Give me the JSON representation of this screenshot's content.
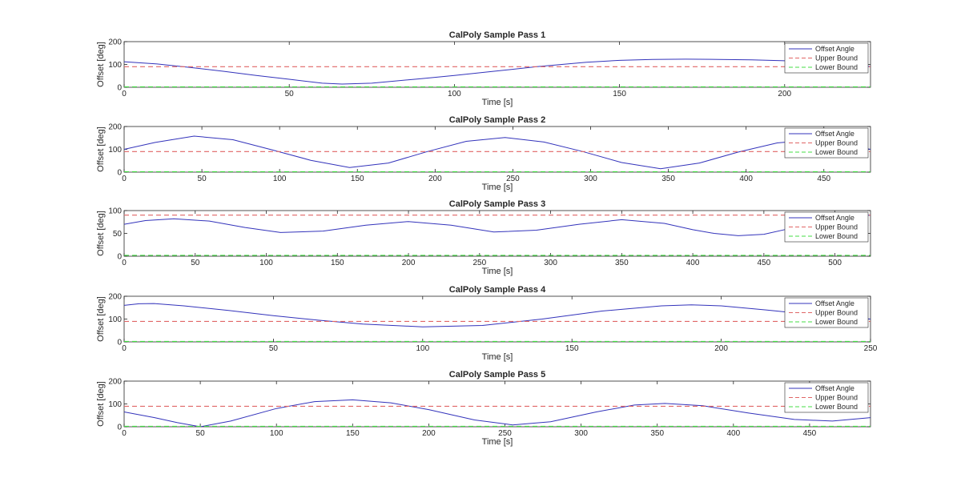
{
  "colors": {
    "offset": "#3333bb",
    "upper": "#e06666",
    "lower": "#44dd44",
    "axis": "#262626",
    "background": "#ffffff"
  },
  "chart_data": [
    {
      "type": "line",
      "title": "CalPoly Sample Pass 1",
      "xlabel": "Time [s]",
      "ylabel": "Offset [deg]",
      "xlim": [
        0,
        226
      ],
      "ylim": [
        0,
        200
      ],
      "xticks": [
        0,
        50,
        100,
        150,
        200
      ],
      "yticks": [
        0,
        100,
        200
      ],
      "legend": {
        "position": "top-right",
        "entries": [
          "Offset Angle",
          "Upper Bound",
          "Lower Bound"
        ]
      },
      "series": [
        {
          "name": "Offset Angle",
          "style": "solid",
          "x": [
            0,
            10,
            20,
            30,
            40,
            50,
            60,
            66,
            75,
            90,
            100,
            110,
            125,
            140,
            150,
            160,
            170,
            180,
            190,
            200,
            210,
            220,
            226
          ],
          "y": [
            112,
            102,
            87,
            70,
            52,
            35,
            18,
            14,
            18,
            38,
            52,
            67,
            90,
            110,
            118,
            122,
            123,
            122,
            120,
            116,
            110,
            100,
            90
          ]
        },
        {
          "name": "Upper Bound",
          "style": "dashed",
          "x": [
            0,
            226
          ],
          "y": [
            90,
            90
          ]
        },
        {
          "name": "Lower Bound",
          "style": "dashed",
          "x": [
            0,
            226
          ],
          "y": [
            2,
            2
          ]
        }
      ]
    },
    {
      "type": "line",
      "title": "CalPoly Sample Pass 2",
      "xlabel": "Time [s]",
      "ylabel": "Offset [deg]",
      "xlim": [
        0,
        480
      ],
      "ylim": [
        0,
        200
      ],
      "xticks": [
        0,
        50,
        100,
        150,
        200,
        250,
        300,
        350,
        400,
        450
      ],
      "yticks": [
        0,
        100,
        200
      ],
      "legend": {
        "position": "top-right",
        "entries": [
          "Offset Angle",
          "Upper Bound",
          "Lower Bound"
        ]
      },
      "series": [
        {
          "name": "Offset Angle",
          "style": "solid",
          "x": [
            0,
            20,
            45,
            70,
            95,
            120,
            145,
            170,
            195,
            220,
            245,
            270,
            295,
            320,
            345,
            370,
            395,
            420,
            440,
            460,
            480
          ],
          "y": [
            100,
            130,
            158,
            142,
            98,
            52,
            20,
            40,
            90,
            135,
            152,
            132,
            90,
            42,
            15,
            40,
            88,
            128,
            140,
            125,
            100
          ]
        },
        {
          "name": "Upper Bound",
          "style": "dashed",
          "x": [
            0,
            480
          ],
          "y": [
            90,
            90
          ]
        },
        {
          "name": "Lower Bound",
          "style": "dashed",
          "x": [
            0,
            480
          ],
          "y": [
            2,
            2
          ]
        }
      ]
    },
    {
      "type": "line",
      "title": "CalPoly Sample Pass 3",
      "xlabel": "Time [s]",
      "ylabel": "Offset [deg]",
      "xlim": [
        0,
        525
      ],
      "ylim": [
        0,
        100
      ],
      "xticks": [
        0,
        50,
        100,
        150,
        200,
        250,
        300,
        350,
        400,
        450,
        500
      ],
      "yticks": [
        0,
        50,
        100
      ],
      "legend": {
        "position": "top-right",
        "entries": [
          "Offset Angle",
          "Upper Bound",
          "Lower Bound"
        ]
      },
      "series": [
        {
          "name": "Offset Angle",
          "style": "solid",
          "x": [
            0,
            15,
            35,
            60,
            85,
            110,
            140,
            170,
            200,
            230,
            260,
            290,
            320,
            350,
            380,
            400,
            415,
            432,
            450,
            470,
            490,
            510,
            525
          ],
          "y": [
            70,
            78,
            82,
            77,
            63,
            52,
            55,
            68,
            76,
            68,
            53,
            57,
            70,
            80,
            72,
            58,
            50,
            45,
            48,
            62,
            78,
            88,
            90
          ]
        },
        {
          "name": "Upper Bound",
          "style": "dashed",
          "x": [
            0,
            525
          ],
          "y": [
            90,
            90
          ]
        },
        {
          "name": "Lower Bound",
          "style": "dashed",
          "x": [
            0,
            525
          ],
          "y": [
            2,
            2
          ]
        }
      ]
    },
    {
      "type": "line",
      "title": "CalPoly Sample Pass 4",
      "xlabel": "Time [s]",
      "ylabel": "Offset [deg]",
      "xlim": [
        0,
        250
      ],
      "ylim": [
        0,
        200
      ],
      "xticks": [
        0,
        50,
        100,
        150,
        200,
        250
      ],
      "yticks": [
        0,
        100,
        200
      ],
      "legend": {
        "position": "top-right",
        "entries": [
          "Offset Angle",
          "Upper Bound",
          "Lower Bound"
        ]
      },
      "series": [
        {
          "name": "Offset Angle",
          "style": "solid",
          "x": [
            0,
            5,
            10,
            20,
            35,
            50,
            65,
            80,
            100,
            120,
            140,
            160,
            180,
            190,
            200,
            215,
            230,
            250
          ],
          "y": [
            160,
            167,
            168,
            158,
            138,
            115,
            95,
            78,
            66,
            72,
            100,
            135,
            158,
            162,
            158,
            140,
            120,
            100
          ]
        },
        {
          "name": "Upper Bound",
          "style": "dashed",
          "x": [
            0,
            250
          ],
          "y": [
            90,
            90
          ]
        },
        {
          "name": "Lower Bound",
          "style": "dashed",
          "x": [
            0,
            250
          ],
          "y": [
            2,
            2
          ]
        }
      ]
    },
    {
      "type": "line",
      "title": "CalPoly Sample Pass 5",
      "xlabel": "Time [s]",
      "ylabel": "Offset [deg]",
      "xlim": [
        0,
        490
      ],
      "ylim": [
        0,
        200
      ],
      "xticks": [
        0,
        50,
        100,
        150,
        200,
        250,
        300,
        350,
        400,
        450
      ],
      "yticks": [
        0,
        100,
        200
      ],
      "legend": {
        "position": "top-right",
        "entries": [
          "Offset Angle",
          "Upper Bound",
          "Lower Bound"
        ]
      },
      "series": [
        {
          "name": "Offset Angle",
          "style": "solid",
          "x": [
            0,
            20,
            35,
            50,
            70,
            100,
            125,
            150,
            175,
            200,
            230,
            255,
            280,
            310,
            335,
            355,
            380,
            410,
            440,
            465,
            490
          ],
          "y": [
            65,
            40,
            18,
            0,
            25,
            80,
            110,
            118,
            105,
            75,
            30,
            8,
            22,
            65,
            95,
            102,
            92,
            60,
            32,
            25,
            40
          ]
        },
        {
          "name": "Upper Bound",
          "style": "dashed",
          "x": [
            0,
            490
          ],
          "y": [
            90,
            90
          ]
        },
        {
          "name": "Lower Bound",
          "style": "dashed",
          "x": [
            0,
            490
          ],
          "y": [
            2,
            2
          ]
        }
      ]
    }
  ]
}
